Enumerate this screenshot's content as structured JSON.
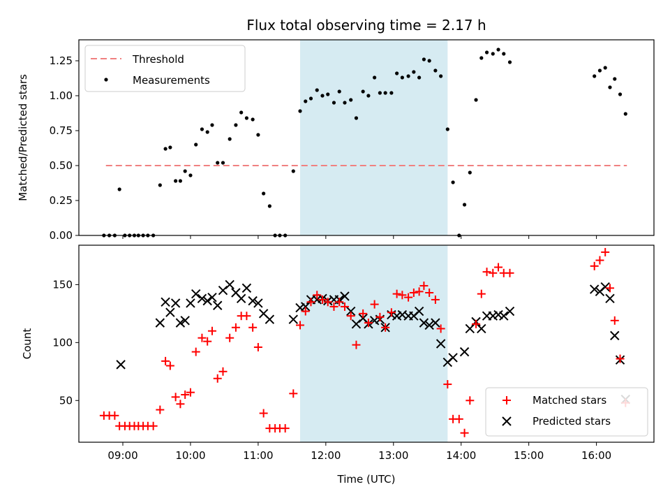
{
  "chart_data": {
    "type": "scatter",
    "title": "Flux total observing time = 2.17 h",
    "xlabel": "Time (UTC)",
    "x_ticks": [
      "09:00",
      "10:00",
      "11:00",
      "12:00",
      "13:00",
      "14:00",
      "15:00",
      "16:00"
    ],
    "x_tick_hours": [
      9,
      10,
      11,
      12,
      13,
      14,
      15,
      16
    ],
    "xlim_hours": [
      8.35,
      16.85
    ],
    "highlight_span_hours": [
      11.62,
      13.8
    ],
    "colors": {
      "span": "#add8e6",
      "threshold": "#f08080",
      "matched": "#ff0000",
      "predicted": "#000000",
      "measurement": "#000000"
    },
    "panels": [
      {
        "ylabel": "Matched/Predicted stars",
        "ylim": [
          0,
          1.4
        ],
        "y_ticks": [
          "0.00",
          "0.25",
          "0.50",
          "0.75",
          "1.00",
          "1.25"
        ],
        "y_tick_values": [
          0,
          0.25,
          0.5,
          0.75,
          1.0,
          1.25
        ],
        "legend": {
          "position": "upper left",
          "entries": [
            "Threshold",
            "Measurements"
          ]
        },
        "threshold": {
          "name": "Threshold",
          "value": 0.5,
          "x_range": [
            8.75,
            16.45
          ]
        },
        "measurements": {
          "name": "Measurements",
          "points": [
            [
              8.72,
              0
            ],
            [
              8.8,
              0
            ],
            [
              8.88,
              0
            ],
            [
              8.95,
              0.33
            ],
            [
              9.03,
              0
            ],
            [
              9.1,
              0
            ],
            [
              9.17,
              0
            ],
            [
              9.23,
              0
            ],
            [
              9.3,
              0
            ],
            [
              9.37,
              0
            ],
            [
              9.45,
              0
            ],
            [
              9.55,
              0.36
            ],
            [
              9.63,
              0.62
            ],
            [
              9.7,
              0.63
            ],
            [
              9.78,
              0.39
            ],
            [
              9.85,
              0.39
            ],
            [
              9.92,
              0.46
            ],
            [
              10.0,
              0.43
            ],
            [
              10.08,
              0.65
            ],
            [
              10.17,
              0.76
            ],
            [
              10.25,
              0.74
            ],
            [
              10.32,
              0.79
            ],
            [
              10.4,
              0.52
            ],
            [
              10.48,
              0.52
            ],
            [
              10.58,
              0.69
            ],
            [
              10.67,
              0.79
            ],
            [
              10.75,
              0.88
            ],
            [
              10.83,
              0.84
            ],
            [
              10.92,
              0.83
            ],
            [
              11.0,
              0.72
            ],
            [
              11.08,
              0.3
            ],
            [
              11.17,
              0.21
            ],
            [
              11.25,
              0
            ],
            [
              11.32,
              0
            ],
            [
              11.4,
              0
            ],
            [
              11.52,
              0.46
            ],
            [
              11.62,
              0.89
            ],
            [
              11.7,
              0.96
            ],
            [
              11.78,
              0.98
            ],
            [
              11.87,
              1.04
            ],
            [
              11.95,
              1.0
            ],
            [
              12.03,
              1.01
            ],
            [
              12.12,
              0.95
            ],
            [
              12.2,
              1.03
            ],
            [
              12.28,
              0.95
            ],
            [
              12.37,
              0.97
            ],
            [
              12.45,
              0.84
            ],
            [
              12.55,
              1.03
            ],
            [
              12.63,
              1.0
            ],
            [
              12.72,
              1.13
            ],
            [
              12.8,
              1.02
            ],
            [
              12.88,
              1.02
            ],
            [
              12.97,
              1.02
            ],
            [
              13.05,
              1.16
            ],
            [
              13.13,
              1.13
            ],
            [
              13.22,
              1.14
            ],
            [
              13.3,
              1.17
            ],
            [
              13.38,
              1.13
            ],
            [
              13.45,
              1.26
            ],
            [
              13.53,
              1.25
            ],
            [
              13.62,
              1.18
            ],
            [
              13.7,
              1.14
            ],
            [
              13.8,
              0.76
            ],
            [
              13.88,
              0.38
            ],
            [
              13.97,
              0
            ],
            [
              14.05,
              0.22
            ],
            [
              14.13,
              0.45
            ],
            [
              14.22,
              0.97
            ],
            [
              14.3,
              1.27
            ],
            [
              14.38,
              1.31
            ],
            [
              14.47,
              1.3
            ],
            [
              14.55,
              1.33
            ],
            [
              14.63,
              1.3
            ],
            [
              14.72,
              1.24
            ],
            [
              15.97,
              1.14
            ],
            [
              16.05,
              1.18
            ],
            [
              16.13,
              1.2
            ],
            [
              16.2,
              1.06
            ],
            [
              16.27,
              1.12
            ],
            [
              16.35,
              1.01
            ],
            [
              16.43,
              0.87
            ]
          ]
        }
      },
      {
        "ylabel": "Count",
        "ylim": [
          14,
          184
        ],
        "y_ticks": [
          "50",
          "100",
          "150"
        ],
        "y_tick_values": [
          50,
          100,
          150
        ],
        "legend": {
          "position": "lower right",
          "entries": [
            "Matched stars",
            "Predicted stars"
          ]
        },
        "series": [
          {
            "name": "Matched stars",
            "marker": "plus",
            "points": [
              [
                8.72,
                37
              ],
              [
                8.8,
                37
              ],
              [
                8.88,
                37
              ],
              [
                8.95,
                28
              ],
              [
                9.03,
                28
              ],
              [
                9.1,
                28
              ],
              [
                9.17,
                28
              ],
              [
                9.23,
                28
              ],
              [
                9.3,
                28
              ],
              [
                9.37,
                28
              ],
              [
                9.45,
                28
              ],
              [
                9.55,
                42
              ],
              [
                9.63,
                84
              ],
              [
                9.7,
                80
              ],
              [
                9.78,
                53
              ],
              [
                9.85,
                47
              ],
              [
                9.92,
                55
              ],
              [
                10.0,
                57
              ],
              [
                10.08,
                92
              ],
              [
                10.17,
                104
              ],
              [
                10.25,
                101
              ],
              [
                10.32,
                110
              ],
              [
                10.4,
                69
              ],
              [
                10.48,
                75
              ],
              [
                10.58,
                104
              ],
              [
                10.67,
                113
              ],
              [
                10.75,
                123
              ],
              [
                10.83,
                123
              ],
              [
                10.92,
                113
              ],
              [
                11.0,
                96
              ],
              [
                11.08,
                39
              ],
              [
                11.17,
                26
              ],
              [
                11.25,
                26
              ],
              [
                11.32,
                26
              ],
              [
                11.4,
                26
              ],
              [
                11.52,
                56
              ],
              [
                11.62,
                115
              ],
              [
                11.7,
                127
              ],
              [
                11.78,
                135
              ],
              [
                11.87,
                141
              ],
              [
                11.95,
                137
              ],
              [
                12.03,
                135
              ],
              [
                12.12,
                131
              ],
              [
                12.2,
                135
              ],
              [
                12.28,
                131
              ],
              [
                12.37,
                123
              ],
              [
                12.45,
                98
              ],
              [
                12.55,
                125
              ],
              [
                12.63,
                117
              ],
              [
                12.72,
                133
              ],
              [
                12.8,
                122
              ],
              [
                12.88,
                113
              ],
              [
                12.97,
                126
              ],
              [
                13.05,
                142
              ],
              [
                13.13,
                141
              ],
              [
                13.22,
                139
              ],
              [
                13.3,
                143
              ],
              [
                13.38,
                144
              ],
              [
                13.45,
                149
              ],
              [
                13.53,
                143
              ],
              [
                13.62,
                137
              ],
              [
                13.7,
                112
              ],
              [
                13.8,
                64
              ],
              [
                13.88,
                34
              ],
              [
                13.97,
                34
              ],
              [
                14.05,
                22
              ],
              [
                14.13,
                50
              ],
              [
                14.22,
                116
              ],
              [
                14.3,
                142
              ],
              [
                14.38,
                161
              ],
              [
                14.47,
                160
              ],
              [
                14.55,
                165
              ],
              [
                14.63,
                160
              ],
              [
                14.72,
                160
              ],
              [
                15.97,
                166
              ],
              [
                16.05,
                171
              ],
              [
                16.13,
                178
              ],
              [
                16.2,
                147
              ],
              [
                16.27,
                119
              ],
              [
                16.35,
                86
              ],
              [
                16.43,
                48
              ]
            ]
          },
          {
            "name": "Predicted stars",
            "marker": "x",
            "points": [
              [
                8.97,
                81
              ],
              [
                9.55,
                117
              ],
              [
                9.63,
                135
              ],
              [
                9.7,
                126
              ],
              [
                9.78,
                134
              ],
              [
                9.85,
                117
              ],
              [
                9.92,
                119
              ],
              [
                10.0,
                134
              ],
              [
                10.08,
                142
              ],
              [
                10.17,
                138
              ],
              [
                10.25,
                136
              ],
              [
                10.32,
                139
              ],
              [
                10.4,
                132
              ],
              [
                10.48,
                145
              ],
              [
                10.58,
                150
              ],
              [
                10.67,
                143
              ],
              [
                10.75,
                138
              ],
              [
                10.83,
                147
              ],
              [
                10.92,
                136
              ],
              [
                11.0,
                134
              ],
              [
                11.08,
                125
              ],
              [
                11.17,
                120
              ],
              [
                11.52,
                120
              ],
              [
                11.62,
                130
              ],
              [
                11.7,
                131
              ],
              [
                11.78,
                137
              ],
              [
                11.87,
                137
              ],
              [
                11.95,
                138
              ],
              [
                12.03,
                136
              ],
              [
                12.12,
                137
              ],
              [
                12.2,
                137
              ],
              [
                12.28,
                140
              ],
              [
                12.37,
                127
              ],
              [
                12.45,
                116
              ],
              [
                12.55,
                121
              ],
              [
                12.63,
                116
              ],
              [
                12.72,
                119
              ],
              [
                12.8,
                120
              ],
              [
                12.88,
                113
              ],
              [
                12.97,
                124
              ],
              [
                13.05,
                123
              ],
              [
                13.13,
                124
              ],
              [
                13.22,
                123
              ],
              [
                13.3,
                123
              ],
              [
                13.38,
                127
              ],
              [
                13.45,
                117
              ],
              [
                13.53,
                115
              ],
              [
                13.62,
                117
              ],
              [
                13.7,
                99
              ],
              [
                13.8,
                83
              ],
              [
                13.88,
                87
              ],
              [
                14.05,
                92
              ],
              [
                14.13,
                112
              ],
              [
                14.22,
                118
              ],
              [
                14.3,
                112
              ],
              [
                14.38,
                123
              ],
              [
                14.47,
                123
              ],
              [
                14.55,
                124
              ],
              [
                14.63,
                123
              ],
              [
                14.72,
                127
              ],
              [
                15.97,
                146
              ],
              [
                16.05,
                144
              ],
              [
                16.13,
                148
              ],
              [
                16.2,
                138
              ],
              [
                16.27,
                106
              ],
              [
                16.35,
                85
              ],
              [
                16.43,
                51
              ]
            ]
          }
        ]
      }
    ]
  }
}
